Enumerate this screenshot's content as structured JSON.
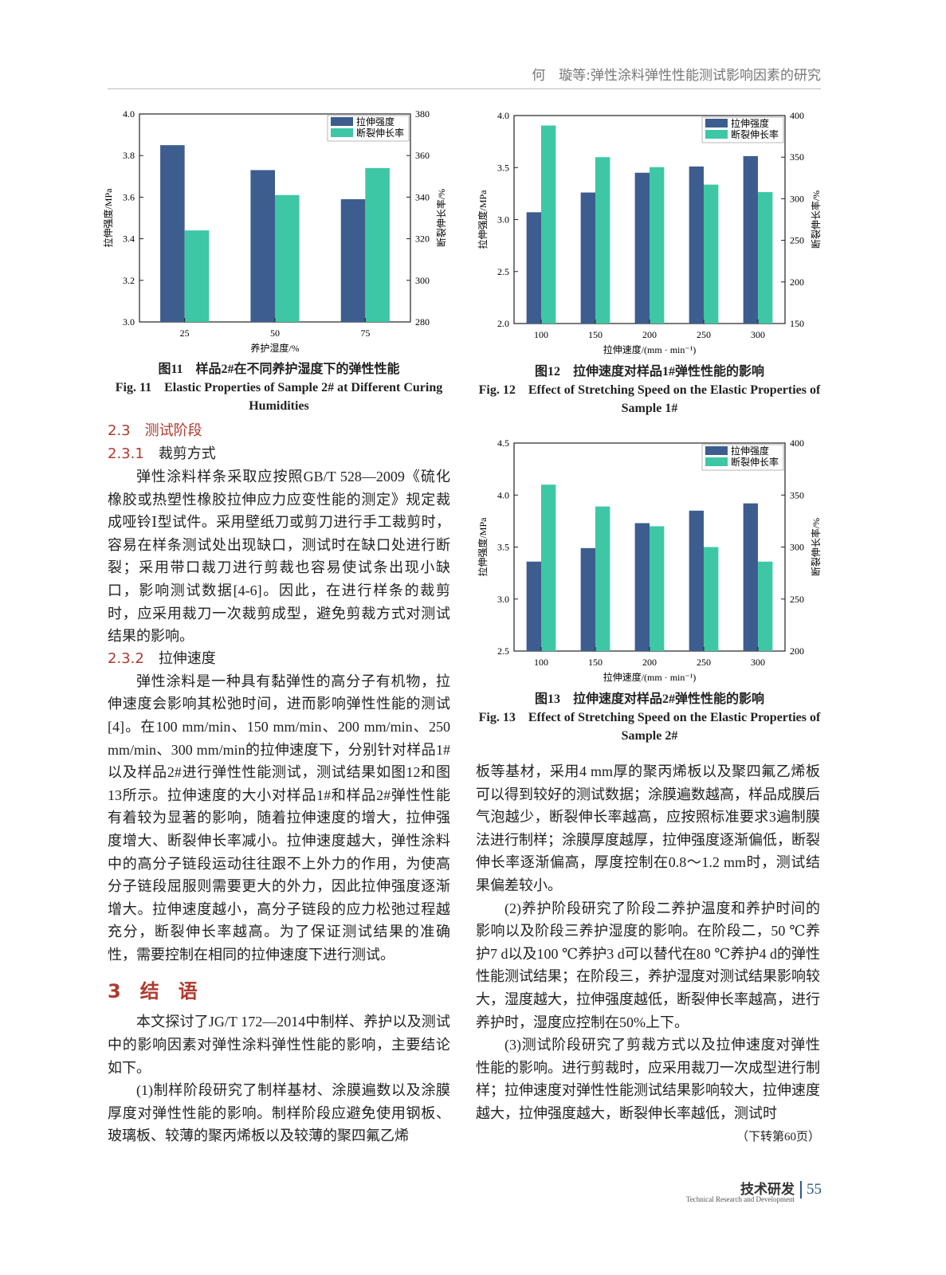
{
  "header": "何　璇等:弹性涂料弹性性能测试影响因素的研究",
  "chart_data": [
    {
      "type": "bar",
      "categories": [
        "25",
        "50",
        "75"
      ],
      "x_label": "养护湿度/%",
      "y_label": "拉伸强度/MPa",
      "y2_label": "断裂伸长率/%",
      "ylim": [
        3.0,
        4.0
      ],
      "yticks": [
        {
          "value": 3,
          "label": "3.0"
        },
        3.2,
        3.4,
        3.6,
        3.8,
        {
          "value": 4,
          "label": "4.0"
        }
      ],
      "y2lim": [
        280,
        380
      ],
      "y2ticks": [
        280,
        300,
        320,
        340,
        360,
        380
      ],
      "legend": "upper right",
      "series": [
        {
          "name": "拉伸强度",
          "color": "#3d5d8f",
          "values": [
            3.85,
            3.73,
            3.59
          ]
        },
        {
          "name": "断裂伸长率",
          "color": "#3ec7a5",
          "axis": "y2",
          "values": [
            324,
            341,
            354
          ]
        }
      ]
    },
    {
      "type": "bar",
      "categories": [
        "100",
        "150",
        "200",
        "250",
        "300"
      ],
      "x_label": "拉伸速度/(mm · min⁻¹)",
      "y_label": "拉伸强度/MPa",
      "y2_label": "断裂伸长率/%",
      "ylim": [
        2.0,
        4.0
      ],
      "yticks": [
        {
          "value": 2,
          "label": "2.0"
        },
        2.5,
        {
          "value": 3,
          "label": "3.0"
        },
        3.5,
        {
          "value": 4,
          "label": "4.0"
        }
      ],
      "y2lim": [
        150,
        400
      ],
      "y2ticks": [
        150,
        200,
        250,
        300,
        350,
        400
      ],
      "legend": "upper right",
      "series": [
        {
          "name": "拉伸强度",
          "color": "#3d5d8f",
          "values": [
            3.07,
            3.26,
            3.45,
            3.51,
            3.61
          ]
        },
        {
          "name": "断裂伸长率",
          "color": "#3ec7a5",
          "axis": "y2",
          "values": [
            388,
            350,
            338,
            317,
            308
          ]
        }
      ]
    },
    {
      "type": "bar",
      "categories": [
        "100",
        "150",
        "200",
        "250",
        "300"
      ],
      "x_label": "拉伸速度/(mm · min⁻¹)",
      "y_label": "拉伸强度/MPa",
      "y2_label": "断裂伸长率/%",
      "ylim": [
        2.5,
        4.5
      ],
      "yticks": [
        2.5,
        {
          "value": 3,
          "label": "3.0"
        },
        3.5,
        {
          "value": 4,
          "label": "4.0"
        },
        4.5
      ],
      "y2lim": [
        200,
        400
      ],
      "y2ticks": [
        200,
        250,
        300,
        350,
        400
      ],
      "legend": "upper right",
      "series": [
        {
          "name": "拉伸强度",
          "color": "#3d5d8f",
          "values": [
            3.36,
            3.49,
            3.73,
            3.85,
            3.92
          ]
        },
        {
          "name": "断裂伸长率",
          "color": "#3ec7a5",
          "axis": "y2",
          "values": [
            360,
            339,
            320,
            300,
            286
          ]
        }
      ]
    }
  ],
  "figures": [
    {
      "caption_cn": "图11　样品2#在不同养护湿度下的弹性性能",
      "caption_en": "Fig. 11　Elastic Properties of Sample 2# at Different Curing Humidities"
    },
    {
      "caption_cn": "图12　拉伸速度对样品1#弹性性能的影响",
      "caption_en": "Fig. 12　Effect of Stretching Speed on the Elastic Properties of Sample 1#"
    },
    {
      "caption_cn": "图13　拉伸速度对样品2#弹性性能的影响",
      "caption_en": "Fig. 13　Effect of Stretching Speed on the Elastic Properties of Sample 2#"
    }
  ],
  "body": {
    "sec_2_3": "2.3　测试阶段",
    "sec_2_3_1": {
      "num": "2.3.1",
      "title": "裁剪方式"
    },
    "p1": "弹性涂料样条采取应按照GB/T 528—2009《硫化橡胶或热塑性橡胶拉伸应力应变性能的测定》规定裁成哑铃Ⅰ型试件。采用壁纸刀或剪刀进行手工裁剪时，容易在样条测试处出现缺口，测试时在缺口处进行断裂；采用带口裁刀进行剪裁也容易使试条出现小缺口，影响测试数据[4-6]。因此，在进行样条的裁剪时，应采用裁刀一次裁剪成型，避免剪裁方式对测试结果的影响。",
    "sec_2_3_2": {
      "num": "2.3.2",
      "title": "拉伸速度"
    },
    "p2": "弹性涂料是一种具有黏弹性的高分子有机物，拉伸速度会影响其松弛时间，进而影响弹性性能的测试[4]。在100 mm/min、150 mm/min、200 mm/min、250 mm/min、300 mm/min的拉伸速度下，分别针对样品1#以及样品2#进行弹性性能测试，测试结果如图12和图13所示。拉伸速度的大小对样品1#和样品2#弹性性能有着较为显著的影响，随着拉伸速度的增大，拉伸强度增大、断裂伸长率减小。拉伸速度越大，弹性涂料中的高分子链段运动往往跟不上外力的作用，为使高分子链段屈服则需要更大的外力，因此拉伸强度逐渐增大。拉伸速度越小，高分子链段的应力松弛过程越充分，断裂伸长率越高。为了保证测试结果的准确性，需要控制在相同的拉伸速度下进行测试。",
    "sec_3": "3　结　语",
    "p3": "本文探讨了JG/T 172—2014中制样、养护以及测试中的影响因素对弹性涂料弹性性能的影响，主要结论如下。",
    "p4a": "(1)制样阶段研究了制样基材、涂膜遍数以及涂膜厚度对弹性性能的影响。制样阶段应避免使用钢板、玻璃板、较薄的聚丙烯板以及较薄的聚四氟乙烯",
    "p4b": "板等基材，采用4 mm厚的聚丙烯板以及聚四氟乙烯板可以得到较好的测试数据；涂膜遍数越高，样品成膜后气泡越少，断裂伸长率越高，应按照标准要求3遍制膜法进行制样；涂膜厚度越厚，拉伸强度逐渐偏低，断裂伸长率逐渐偏高，厚度控制在0.8～1.2 mm时，测试结果偏差较小。",
    "p5": "(2)养护阶段研究了阶段二养护温度和养护时间的影响以及阶段三养护湿度的影响。在阶段二，50 ℃养护7 d以及100 ℃养护3 d可以替代在80 ℃养护4 d的弹性性能测试结果；在阶段三，养护湿度对测试结果影响较大，湿度越大，拉伸强度越低，断裂伸长率越高，进行养护时，湿度应控制在50%上下。",
    "p6": "(3)测试阶段研究了剪裁方式以及拉伸速度对弹性性能的影响。进行剪裁时，应采用裁刀一次成型进行制样；拉伸速度对弹性性能测试结果影响较大，拉伸速度越大，拉伸强度越大，断裂伸长率越低，测试时",
    "continued": "（下转第60页）"
  },
  "footer": {
    "section_cn": "技术研发",
    "section_en": "Technical Research and Development",
    "page": "55"
  }
}
